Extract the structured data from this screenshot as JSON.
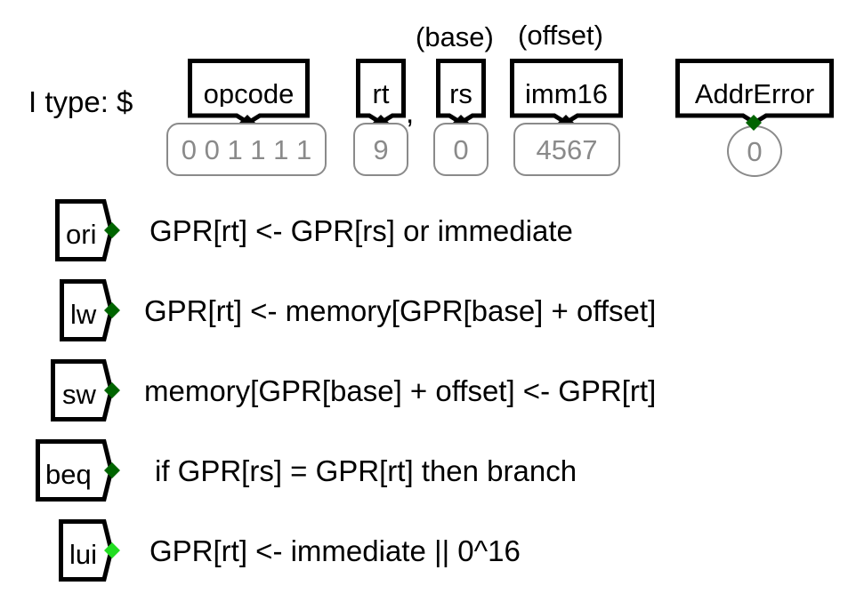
{
  "header": {
    "instruction_prefix": "I type: $",
    "comma": ",",
    "rs_alias": "(base)",
    "imm_alias": "(offset)"
  },
  "fields": {
    "opcode": {
      "label": "opcode",
      "value": "0 0 1 1 1 1"
    },
    "rt": {
      "label": "rt",
      "value": "9"
    },
    "rs": {
      "label": "rs",
      "value": "0"
    },
    "imm16": {
      "label": "imm16",
      "value": "4567"
    },
    "addr_error": {
      "label": "AddrError",
      "value": "0"
    }
  },
  "instructions": [
    {
      "label": "ori",
      "description": "GPR[rt] <- GPR[rs] or immediate",
      "pin_color": "#006400"
    },
    {
      "label": "lw",
      "description": "GPR[rt] <- memory[GPR[base] + offset]",
      "pin_color": "#006400"
    },
    {
      "label": "sw",
      "description": "memory[GPR[base] + offset] <- GPR[rt]",
      "pin_color": "#006400"
    },
    {
      "label": "beq",
      "description": "if GPR[rs] = GPR[rt] then branch",
      "pin_color": "#006400"
    },
    {
      "label": "lui",
      "description": "GPR[rt] <- immediate || 0^16",
      "pin_color": "#22dd22"
    }
  ],
  "colors": {
    "probe_border": "#8a8a8a",
    "pin_dark_green": "#006400",
    "pin_bright_green": "#22dd22",
    "pin_black": "#000000"
  }
}
